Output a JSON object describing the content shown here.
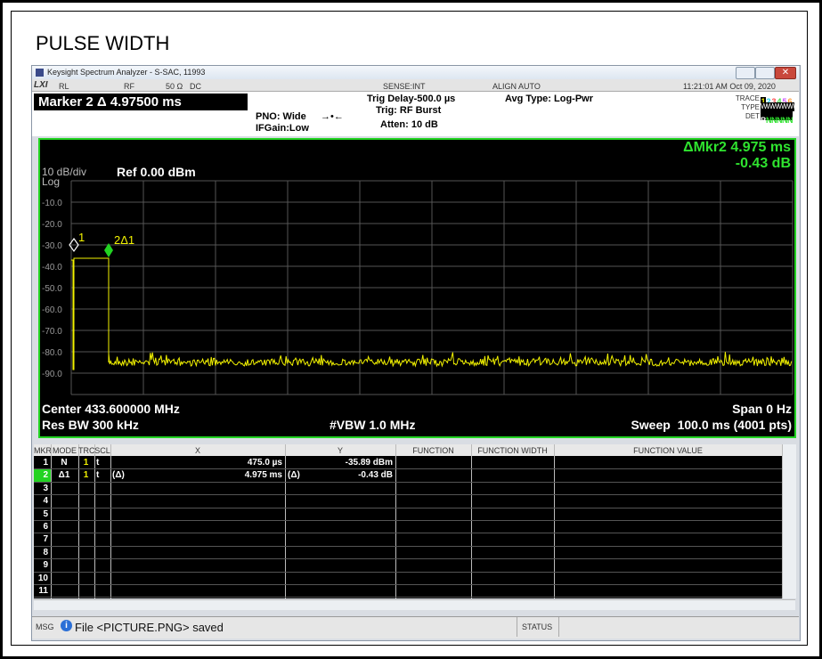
{
  "page_title": "PULSE WIDTH",
  "window": {
    "title": "Keysight Spectrum Analyzer - S-SAC, 11993"
  },
  "status_row": {
    "rl": "RL",
    "rf": "RF",
    "impedance": "50 Ω",
    "coupling": "DC",
    "sense": "SENSE:INT",
    "align": "ALIGN AUTO",
    "datetime": "11:21:01 AM Oct 09, 2020"
  },
  "settings": {
    "marker_readout": "Marker 2 Δ 4.97500 ms",
    "pno": "PNO: Wide",
    "ifgain": "IFGain:Low",
    "trig_delay": "Trig Delay-500.0 µs",
    "trig": "Trig: RF Burst",
    "atten": "Atten: 10 dB",
    "avg_type": "Avg Type: Log-Pwr",
    "trace_label": "TRACE",
    "trace_nums": [
      "1",
      "2",
      "3",
      "4",
      "5",
      "6"
    ],
    "type_label": "TYPE",
    "type_value": "WWWWWW",
    "det_label": "DET",
    "det_values": [
      "P",
      "N",
      "N",
      "N",
      "N",
      "N"
    ]
  },
  "display": {
    "delta_marker": "ΔMkr2 4.975 ms",
    "delta_value": "-0.43 dB",
    "scale": "10 dB/div",
    "scale_type": "Log",
    "ref": "Ref 0.00 dBm",
    "y_labels": [
      "-10.0",
      "-20.0",
      "-30.0",
      "-40.0",
      "-50.0",
      "-60.0",
      "-70.0",
      "-80.0",
      "-90.0"
    ],
    "marker_1": "1",
    "marker_2": "2Δ1",
    "center": "Center 433.600000 MHz",
    "res_bw": "Res BW 300 kHz",
    "vbw": "#VBW 1.0 MHz",
    "span": "Span 0 Hz",
    "sweep": "Sweep  100.0 ms (4001 pts)"
  },
  "table": {
    "headers": {
      "mkr": "MKR",
      "mode": "MODE",
      "trc": "TRC",
      "scl": "SCL",
      "x": "X",
      "y": "Y",
      "function": "FUNCTION",
      "function_width": "FUNCTION WIDTH",
      "function_value": "FUNCTION VALUE"
    },
    "rows": [
      {
        "mkr": "1",
        "mode": "N",
        "trc": "1",
        "scl": "t",
        "x": "475.0 µs",
        "y": "-35.89 dBm"
      },
      {
        "mkr": "2",
        "mode": "Δ1",
        "trc": "1",
        "scl": "t",
        "x_ref": "(Δ)",
        "x": "4.975 ms",
        "y_ref": "(Δ)",
        "y": "-0.43 dB"
      },
      {
        "mkr": "3"
      },
      {
        "mkr": "4"
      },
      {
        "mkr": "5"
      },
      {
        "mkr": "6"
      },
      {
        "mkr": "7"
      },
      {
        "mkr": "8"
      },
      {
        "mkr": "9"
      },
      {
        "mkr": "10"
      },
      {
        "mkr": "11"
      }
    ]
  },
  "status_bar": {
    "msg": "MSG",
    "message": "File <PICTURE.PNG> saved",
    "status": "STATUS"
  }
}
